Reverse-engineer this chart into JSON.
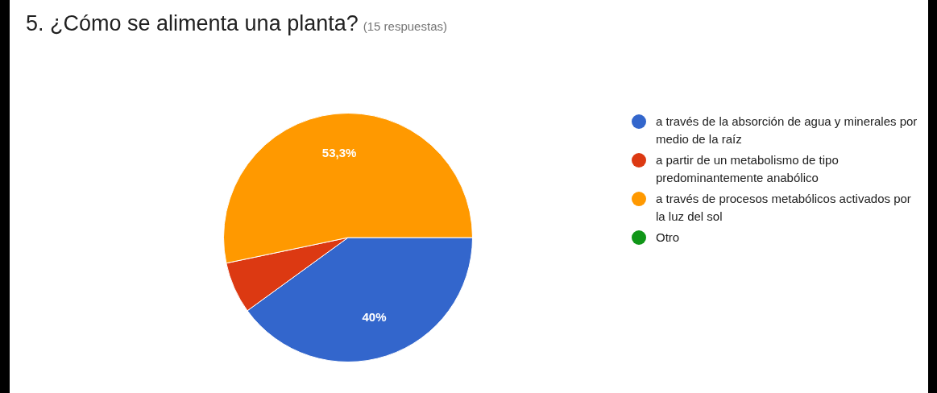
{
  "chart_data": {
    "type": "pie",
    "title": "5. ¿Cómo se alimenta una planta?",
    "subtitle": "(15 respuestas)",
    "categories": [
      "a través de la absorción de agua y minerales por medio de la raíz",
      "a partir de un metabolismo de tipo predominantemente anabólico",
      "a través de procesos metabólicos activados por la luz del sol",
      "Otro"
    ],
    "values": [
      40,
      6.7,
      53.3,
      0
    ],
    "colors": [
      "#3366cc",
      "#dc3912",
      "#ff9900",
      "#109618"
    ],
    "value_labels": [
      "40%",
      null,
      "53,3%",
      null
    ],
    "legend": "right"
  }
}
